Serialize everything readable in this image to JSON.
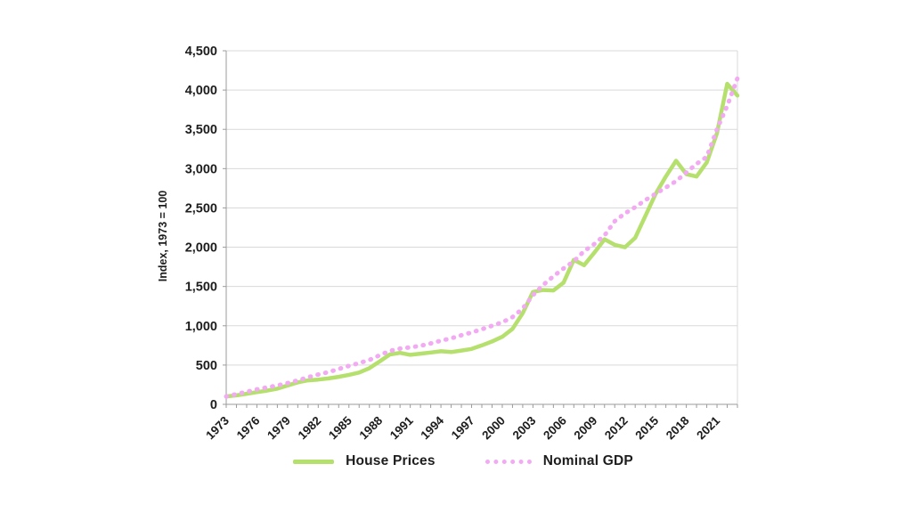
{
  "chart_data": {
    "type": "line",
    "title": "",
    "ylabel": "Index, 1973 = 100",
    "xlabel": "",
    "ylim": [
      0,
      4500
    ],
    "grid": "horizontal",
    "legend_position": "bottom-center",
    "background_color": "#ffffff",
    "gridline_color": "#d9d9d9",
    "axis_color": "#9b9b9b",
    "text_color": "#1d1d1d",
    "x": [
      1973,
      1974,
      1975,
      1976,
      1977,
      1978,
      1979,
      1980,
      1981,
      1982,
      1983,
      1984,
      1985,
      1986,
      1987,
      1988,
      1989,
      1990,
      1991,
      1992,
      1993,
      1994,
      1995,
      1996,
      1997,
      1998,
      1999,
      2000,
      2001,
      2002,
      2003,
      2004,
      2005,
      2006,
      2007,
      2008,
      2009,
      2010,
      2011,
      2012,
      2013,
      2014,
      2015,
      2016,
      2017,
      2018,
      2019,
      2020,
      2021,
      2022,
      2023
    ],
    "x_tick_labels": [
      "1973",
      "1976",
      "1979",
      "1982",
      "1985",
      "1988",
      "1991",
      "1994",
      "1997",
      "2000",
      "2003",
      "2006",
      "2009",
      "2012",
      "2015",
      "2018",
      "2021"
    ],
    "y_ticks": [
      0,
      500,
      1000,
      1500,
      2000,
      2500,
      3000,
      3500,
      4000,
      4500
    ],
    "y_tick_labels": [
      "0",
      "500",
      "1,000",
      "1,500",
      "2,000",
      "2,500",
      "3,000",
      "3,500",
      "4,000",
      "4,500"
    ],
    "series": [
      {
        "name": "House Prices",
        "style": "solid",
        "color": "#b5e06e",
        "values": [
          100,
          115,
          135,
          155,
          175,
          200,
          240,
          280,
          305,
          315,
          330,
          350,
          375,
          405,
          460,
          545,
          635,
          655,
          630,
          645,
          660,
          675,
          665,
          685,
          705,
          750,
          800,
          860,
          960,
          1160,
          1430,
          1455,
          1450,
          1550,
          1840,
          1770,
          1930,
          2100,
          2030,
          2000,
          2120,
          2400,
          2680,
          2900,
          3100,
          2930,
          2900,
          3080,
          3450,
          4080,
          3930
        ]
      },
      {
        "name": "Nominal GDP",
        "style": "dotted",
        "color": "#f2aaf2",
        "values": [
          100,
          130,
          160,
          190,
          215,
          240,
          270,
          305,
          345,
          380,
          410,
          450,
          490,
          525,
          565,
          625,
          680,
          710,
          725,
          745,
          775,
          810,
          840,
          880,
          915,
          955,
          1000,
          1045,
          1110,
          1220,
          1390,
          1520,
          1630,
          1730,
          1820,
          1950,
          2040,
          2150,
          2330,
          2430,
          2510,
          2600,
          2680,
          2760,
          2840,
          2950,
          3060,
          3150,
          3500,
          3800,
          4150
        ]
      }
    ]
  }
}
